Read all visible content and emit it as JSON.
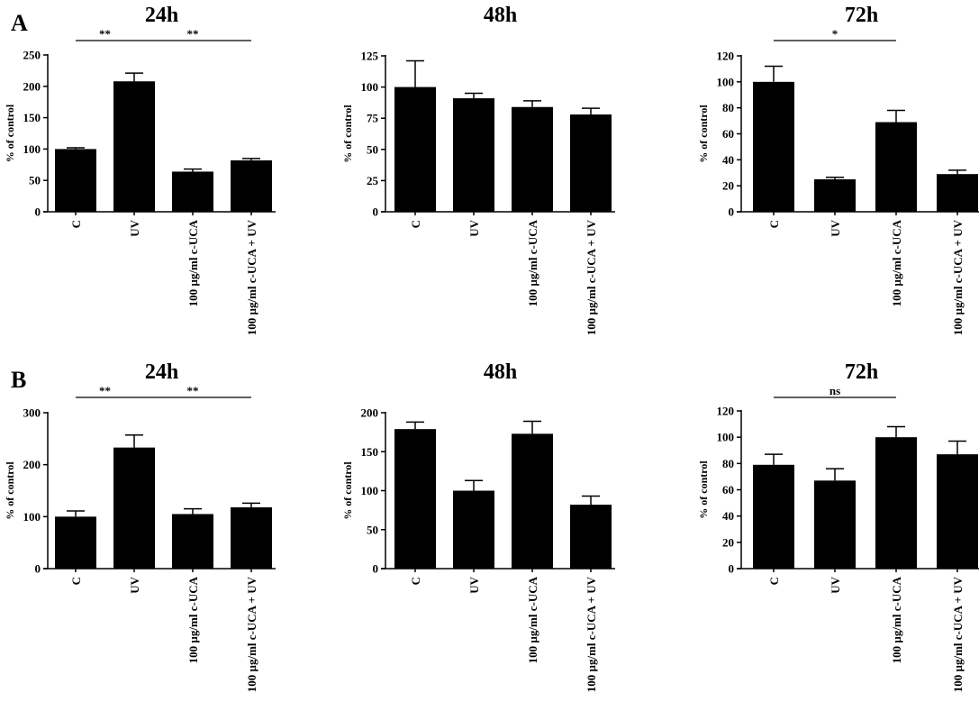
{
  "panel_labels": [
    "A",
    "B"
  ],
  "chart_data": [
    {
      "panel": "A",
      "type": "bar",
      "title": "24h",
      "ylabel": "% of control",
      "categories": [
        "C",
        "UV",
        "100 µg/ml c-UCA",
        "100 µg/ml c-UCA + UV"
      ],
      "values": [
        100,
        208,
        64,
        82
      ],
      "errors": [
        2,
        13,
        4,
        3
      ],
      "ylim": [
        0,
        250
      ],
      "yticks": [
        0,
        50,
        100,
        150,
        200,
        250
      ],
      "significance": [
        {
          "from": 0,
          "to": 1,
          "label": "**"
        },
        {
          "from": 1,
          "to": 3,
          "label": "**"
        }
      ]
    },
    {
      "panel": "A",
      "type": "bar",
      "title": "48h",
      "ylabel": "% of control",
      "categories": [
        "C",
        "UV",
        "100 µg/ml c-UCA",
        "100 µg/ml c-UCA + UV"
      ],
      "values": [
        100,
        91,
        84,
        78
      ],
      "errors": [
        21,
        4,
        5,
        5
      ],
      "ylim": [
        0,
        125
      ],
      "yticks": [
        0,
        25,
        50,
        75,
        100,
        125
      ],
      "significance": []
    },
    {
      "panel": "A",
      "type": "bar",
      "title": "72h",
      "ylabel": "% of control",
      "categories": [
        "C",
        "UV",
        "100 µg/ml c-UCA",
        "100 µg/ml c-UCA + UV"
      ],
      "values": [
        100,
        25,
        69,
        29
      ],
      "errors": [
        12,
        1.5,
        9,
        3
      ],
      "ylim": [
        0,
        120
      ],
      "yticks": [
        0,
        20,
        40,
        60,
        80,
        100,
        120
      ],
      "significance": [
        {
          "from": 0,
          "to": 2,
          "label": "*"
        }
      ]
    },
    {
      "panel": "B",
      "type": "bar",
      "title": "24h",
      "ylabel": "% of control",
      "categories": [
        "C",
        "UV",
        "100 µg/ml c-UCA",
        "100 µg/ml c-UCA + UV"
      ],
      "values": [
        100,
        233,
        105,
        118
      ],
      "errors": [
        11,
        24,
        10,
        8
      ],
      "ylim": [
        0,
        300
      ],
      "yticks": [
        0,
        100,
        200,
        300
      ],
      "significance": [
        {
          "from": 0,
          "to": 1,
          "label": "**"
        },
        {
          "from": 1,
          "to": 3,
          "label": "**"
        }
      ]
    },
    {
      "panel": "B",
      "type": "bar",
      "title": "48h",
      "ylabel": "% of control",
      "categories": [
        "C",
        "UV",
        "100 µg/ml c-UCA",
        "100 µg/ml c-UCA + UV"
      ],
      "values": [
        179,
        100,
        173,
        82
      ],
      "errors": [
        9,
        13,
        16,
        11
      ],
      "ylim": [
        0,
        200
      ],
      "yticks": [
        0,
        50,
        100,
        150,
        200
      ],
      "significance": []
    },
    {
      "panel": "B",
      "type": "bar",
      "title": "72h",
      "ylabel": "% of control",
      "categories": [
        "C",
        "UV",
        "100 µg/ml c-UCA",
        "100 µg/ml c-UCA + UV"
      ],
      "values": [
        79,
        67,
        100,
        87
      ],
      "errors": [
        8,
        9,
        8,
        10
      ],
      "ylim": [
        0,
        120
      ],
      "yticks": [
        0,
        20,
        40,
        60,
        80,
        100,
        120
      ],
      "significance": [
        {
          "from": 0,
          "to": 2,
          "label": "ns"
        }
      ]
    }
  ]
}
